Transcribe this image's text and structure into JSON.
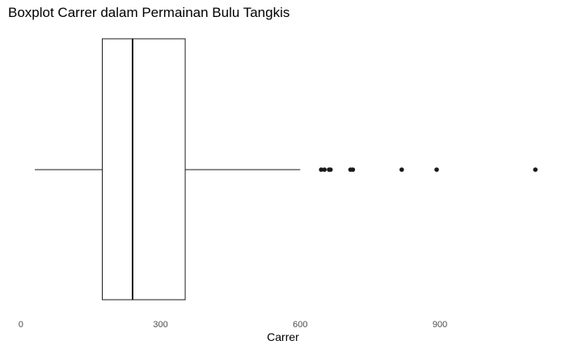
{
  "chart_data": {
    "type": "boxplot",
    "title": "Boxplot Carrer dalam Permainan Bulu Tangkis",
    "xlabel": "Carrer",
    "ylabel": "",
    "xlim": [
      -10,
      1110
    ],
    "x_ticks": [
      0,
      300,
      600,
      900
    ],
    "x_tick_labels": [
      "0",
      "300",
      "600",
      "900"
    ],
    "grid": false,
    "orientation": "horizontal",
    "box": {
      "whisker_low": 30,
      "q1": 175,
      "median": 240,
      "q3": 353,
      "whisker_high": 600
    },
    "outliers": [
      645,
      652,
      662,
      665,
      708,
      713,
      818,
      893,
      1105
    ],
    "colors": {
      "stroke": "#1a1a1a",
      "box_fill": "#ffffff",
      "point": "#1a1a1a"
    }
  }
}
